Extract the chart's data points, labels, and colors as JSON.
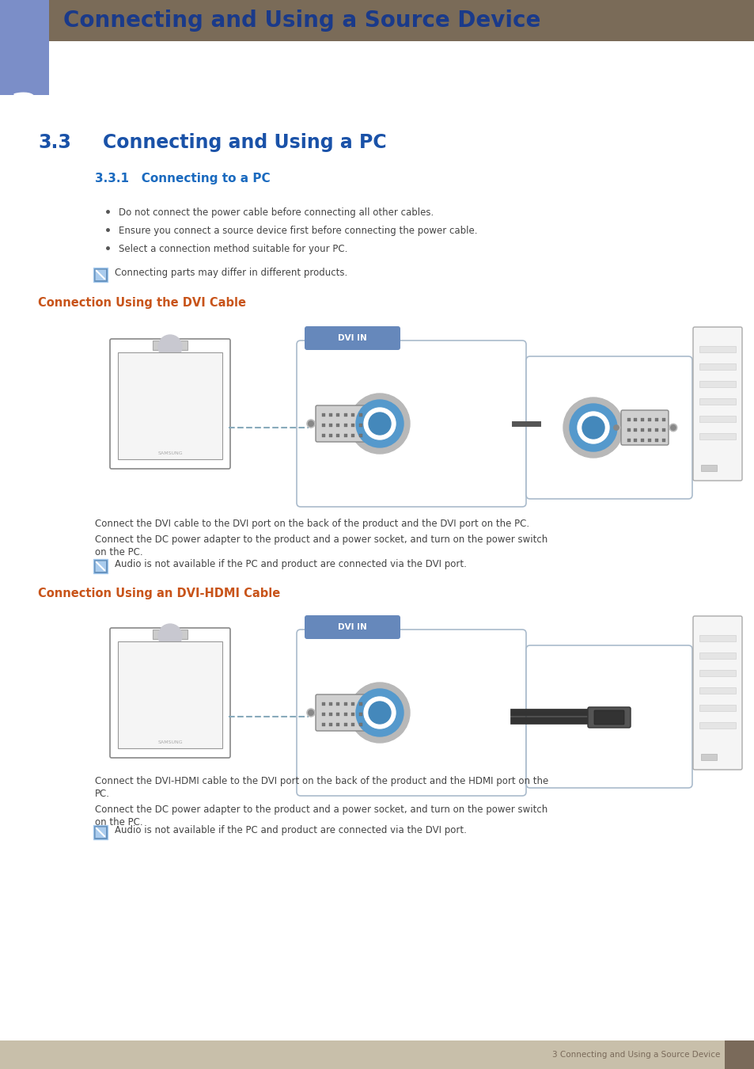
{
  "page_bg": "#ffffff",
  "header_bar_color": "#7a6b58",
  "chapter_box_color": "#7b8ec8",
  "chapter_number": "3",
  "chapter_title": "Connecting and Using a Source Device",
  "chapter_title_color": "#1a3a8a",
  "chapter_title_fontsize": 20,
  "section_number": "3.3",
  "section_text": "Connecting and Using a PC",
  "section_title_color": "#1a52a8",
  "section_title_fontsize": 17,
  "subsection_title": "3.3.1   Connecting to a PC",
  "subsection_title_color": "#1a6abf",
  "subsection_title_fontsize": 11,
  "bullet_color": "#1a52a8",
  "bullet_points": [
    "Do not connect the power cable before connecting all other cables.",
    "Ensure you connect a source device first before connecting the power cable.",
    "Select a connection method suitable for your PC."
  ],
  "note_text_1": "Connecting parts may differ in different products.",
  "connection_heading_1": "Connection Using the DVI Cable",
  "connection_heading_2": "Connection Using an DVI-HDMI Cable",
  "connection_heading_color": "#c8541a",
  "body_text_color": "#444444",
  "body_fontsize": 8.5,
  "dvi_label": "DVI IN",
  "dvi_label_bg": "#6688bb",
  "dvi_label_color": "#ffffff",
  "desc_dvi_1": "Connect the DVI cable to the DVI port on the back of the product and the DVI port on the PC.",
  "desc_dvi_2a": "Connect the DC power adapter to the product and a power socket, and turn on the power switch",
  "desc_dvi_2b": "on the PC.",
  "note_dvi": "Audio is not available if the PC and product are connected via the DVI port.",
  "desc_hdmi_1a": "Connect the DVI-HDMI cable to the DVI port on the back of the product and the HDMI port on the",
  "desc_hdmi_1b": "PC.",
  "desc_hdmi_2a": "Connect the DC power adapter to the product and a power socket, and turn on the power switch",
  "desc_hdmi_2b": "on the PC.",
  "note_hdmi": "Audio is not available if the PC and product are connected via the DVI port.",
  "footer_bar_color": "#c8bfaa",
  "footer_text": "3 Connecting and Using a Source Device",
  "footer_text_color": "#7a6a5a",
  "footer_accent_color": "#7a6a5a",
  "note_icon_bg": "#5588bb",
  "note_icon_border": "#aaccee"
}
